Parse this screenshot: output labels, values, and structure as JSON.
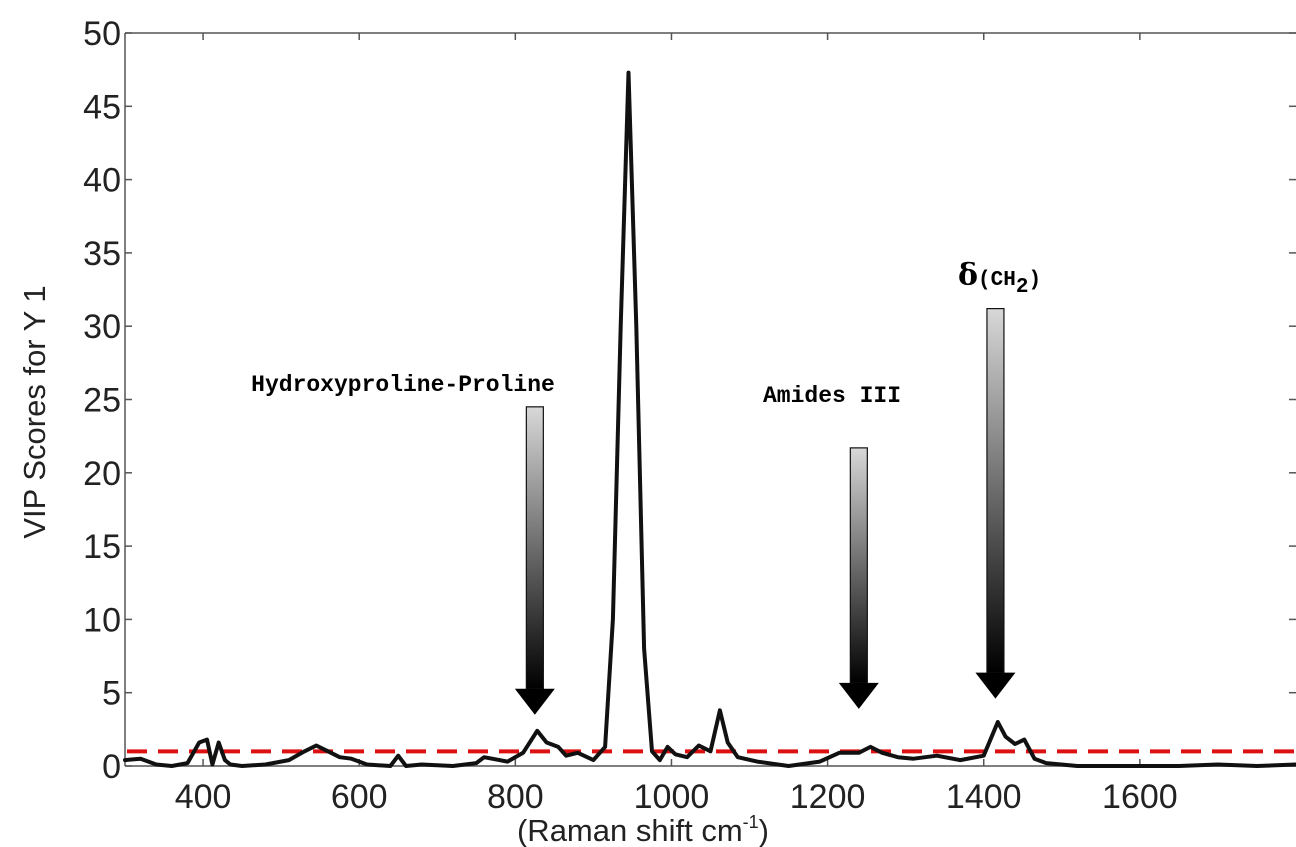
{
  "chart_data": {
    "type": "line",
    "xlabel_text": "(Raman shift cm",
    "xlabel_sup": "-1",
    "xlabel_close": ")",
    "ylabel": "VIP Scores for Y 1",
    "xlim": [
      300,
      1800
    ],
    "ylim": [
      0,
      50
    ],
    "xticks": [
      400,
      600,
      800,
      1000,
      1200,
      1400,
      1600
    ],
    "yticks": [
      0,
      5,
      10,
      15,
      20,
      25,
      30,
      35,
      40,
      45,
      50
    ],
    "grid": false,
    "threshold": {
      "y": 1,
      "color": "#dd1111",
      "style": "dashed"
    },
    "series": [
      {
        "color": "#111111",
        "x": [
          300,
          320,
          340,
          360,
          380,
          395,
          405,
          412,
          420,
          428,
          435,
          450,
          480,
          510,
          530,
          545,
          560,
          575,
          590,
          610,
          640,
          650,
          660,
          680,
          720,
          750,
          760,
          790,
          810,
          828,
          840,
          855,
          865,
          880,
          900,
          915,
          925,
          935,
          945,
          955,
          965,
          975,
          985,
          995,
          1005,
          1020,
          1035,
          1050,
          1062,
          1072,
          1085,
          1110,
          1150,
          1190,
          1215,
          1240,
          1255,
          1270,
          1290,
          1310,
          1340,
          1370,
          1400,
          1418,
          1428,
          1440,
          1452,
          1465,
          1480,
          1520,
          1600,
          1650,
          1700,
          1750,
          1800
        ],
        "values": [
          0.4,
          0.5,
          0.1,
          0.0,
          0.2,
          1.6,
          1.8,
          0.1,
          1.6,
          0.4,
          0.1,
          0.0,
          0.1,
          0.4,
          1.0,
          1.4,
          1.0,
          0.6,
          0.5,
          0.1,
          0.0,
          0.7,
          0.0,
          0.1,
          0.0,
          0.2,
          0.6,
          0.3,
          0.9,
          2.4,
          1.6,
          1.3,
          0.7,
          0.9,
          0.4,
          1.3,
          10.0,
          30.0,
          47.3,
          30.0,
          8.0,
          1.0,
          0.4,
          1.3,
          0.8,
          0.6,
          1.4,
          1.0,
          3.8,
          1.6,
          0.6,
          0.3,
          0.0,
          0.3,
          0.9,
          0.9,
          1.3,
          0.9,
          0.6,
          0.5,
          0.7,
          0.4,
          0.7,
          3.0,
          2.0,
          1.5,
          1.8,
          0.5,
          0.2,
          0.0,
          0.0,
          0.0,
          0.1,
          0.0,
          0.1
        ]
      }
    ],
    "annotations": [
      {
        "text": "Hydroxyproline-Proline",
        "x": 825,
        "arrow_top": 24.5,
        "arrow_tip": 3.5
      },
      {
        "text": "Amides III",
        "x": 1240,
        "arrow_top": 21.7,
        "arrow_tip": 3.9
      },
      {
        "text": "δ",
        "sub_text": "(CH",
        "subscript": "2",
        "close_text": ")",
        "x": 1415,
        "arrow_top": 31.2,
        "arrow_tip": 4.6
      }
    ]
  }
}
